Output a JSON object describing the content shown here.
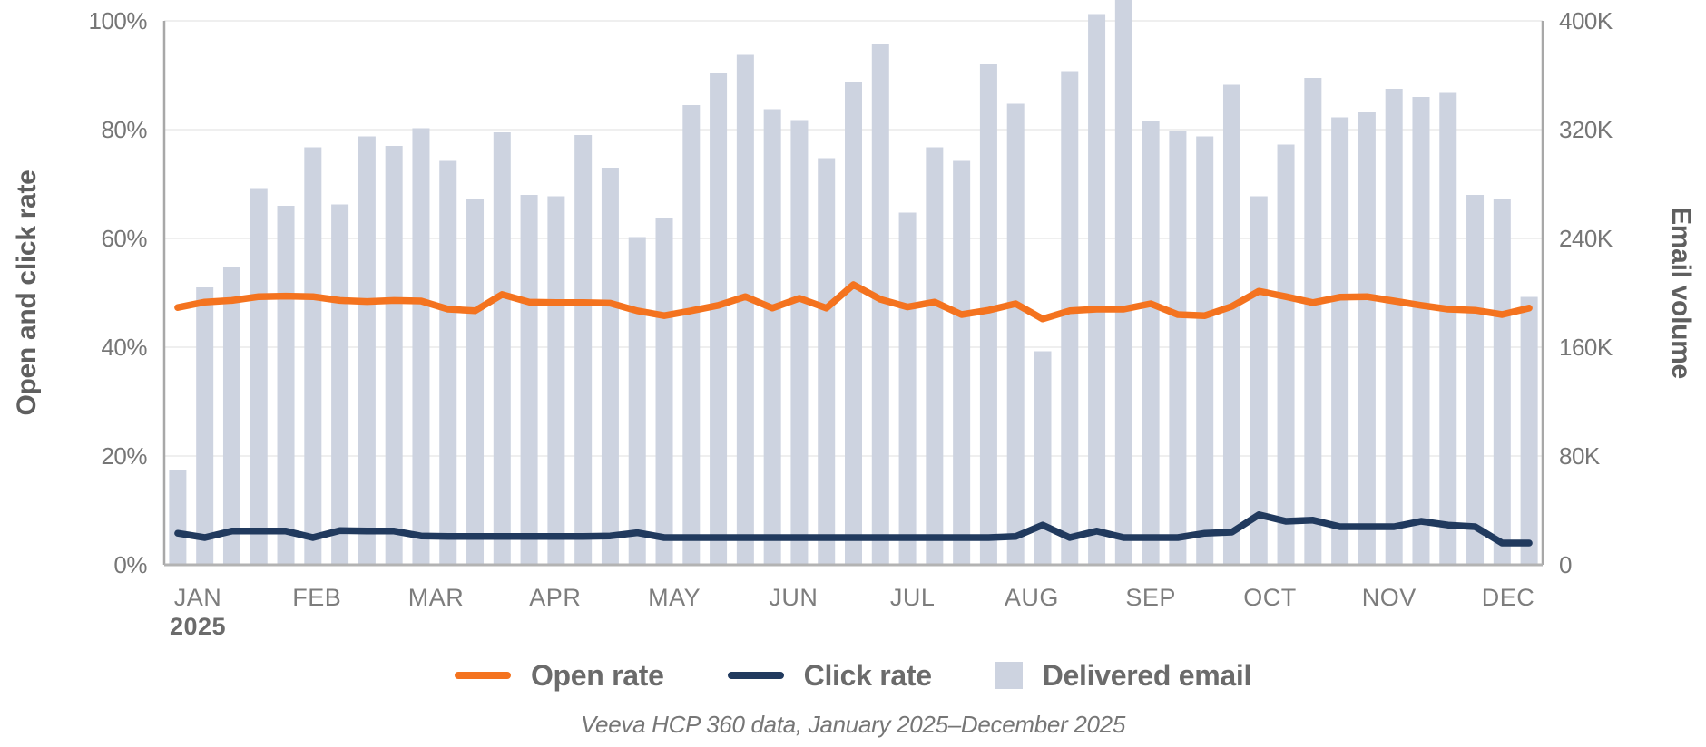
{
  "chart_data": {
    "type": "bar",
    "subtype": "combo-bar-line-dual-axis",
    "x_unit": "week",
    "categories_months": [
      "JAN",
      "FEB",
      "MAR",
      "APR",
      "MAY",
      "JUN",
      "JUL",
      "AUG",
      "SEP",
      "OCT",
      "NOV",
      "DEC"
    ],
    "year_label": "2025",
    "left_axis": {
      "title": "Open and click rate",
      "ticks": [
        "0%",
        "20%",
        "40%",
        "60%",
        "80%",
        "100%"
      ],
      "min": 0,
      "max": 100,
      "grid": true
    },
    "right_axis": {
      "title": "Email volume",
      "ticks": [
        "0",
        "80K",
        "160K",
        "240K",
        "320K",
        "400K"
      ],
      "min": 0,
      "max": 400000
    },
    "series": [
      {
        "name": "Open rate",
        "type": "line",
        "axis": "left",
        "unit": "%",
        "color": "#F4731F",
        "values": [
          47.3,
          48.3,
          48.6,
          49.3,
          49.4,
          49.3,
          48.6,
          48.4,
          48.6,
          48.5,
          47.0,
          46.7,
          49.7,
          48.3,
          48.2,
          48.2,
          48.1,
          46.7,
          45.8,
          46.7,
          47.7,
          49.3,
          47.2,
          49.0,
          47.2,
          51.5,
          48.8,
          47.4,
          48.3,
          46.0,
          46.8,
          48.0,
          45.2,
          46.7,
          47.0,
          47.0,
          48.0,
          46.0,
          45.8,
          47.5,
          50.3,
          49.3,
          48.2,
          49.2,
          49.3,
          48.5,
          47.7,
          47.0,
          46.8,
          46.0,
          47.2
        ]
      },
      {
        "name": "Click rate",
        "type": "line",
        "axis": "left",
        "unit": "%",
        "color": "#213A5E",
        "values": [
          5.8,
          5.0,
          6.2,
          6.2,
          6.2,
          5.0,
          6.3,
          6.2,
          6.2,
          5.3,
          5.2,
          5.2,
          5.2,
          5.2,
          5.2,
          5.2,
          5.3,
          5.9,
          5.0,
          5.0,
          5.0,
          5.0,
          5.0,
          5.0,
          5.0,
          5.0,
          5.0,
          5.0,
          5.0,
          5.0,
          5.0,
          5.2,
          7.3,
          5.0,
          6.2,
          5.0,
          5.0,
          5.0,
          5.8,
          6.0,
          9.2,
          8.0,
          8.2,
          7.0,
          7.0,
          7.0,
          8.0,
          7.3,
          7.0,
          4.0,
          4.0
        ]
      },
      {
        "name": "Delivered email",
        "type": "bar",
        "axis": "right",
        "unit": "emails",
        "color": "#CDD3E0",
        "values": [
          70000,
          204000,
          219000,
          277000,
          264000,
          307000,
          265000,
          315000,
          308000,
          321000,
          297000,
          269000,
          318000,
          272000,
          271000,
          316000,
          292000,
          241000,
          255000,
          338000,
          362000,
          375000,
          335000,
          327000,
          299000,
          355000,
          383000,
          259000,
          307000,
          297000,
          368000,
          339000,
          157000,
          363000,
          405000,
          416000,
          326000,
          319000,
          315000,
          353000,
          271000,
          309000,
          358000,
          329000,
          333000,
          350000,
          344000,
          347000,
          272000,
          269000,
          197000
        ]
      }
    ],
    "legend": {
      "position": "bottom",
      "items": [
        {
          "label": "Open rate",
          "swatch": "line",
          "color": "#F4731F"
        },
        {
          "label": "Click rate",
          "swatch": "line",
          "color": "#213A5E"
        },
        {
          "label": "Delivered email",
          "swatch": "square",
          "color": "#CDD3E0"
        }
      ]
    },
    "caption": "Veeva HCP 360 data, January 2025–December 2025",
    "colors": {
      "grid": "#EFEFEF",
      "axis_line_sides": "#A8A8A8",
      "axis_line_bottom": "#B3B3B3",
      "tick_text": "#767676",
      "axis_title_text": "#5F5F5F",
      "legend_text": "#6B6B6B"
    }
  }
}
